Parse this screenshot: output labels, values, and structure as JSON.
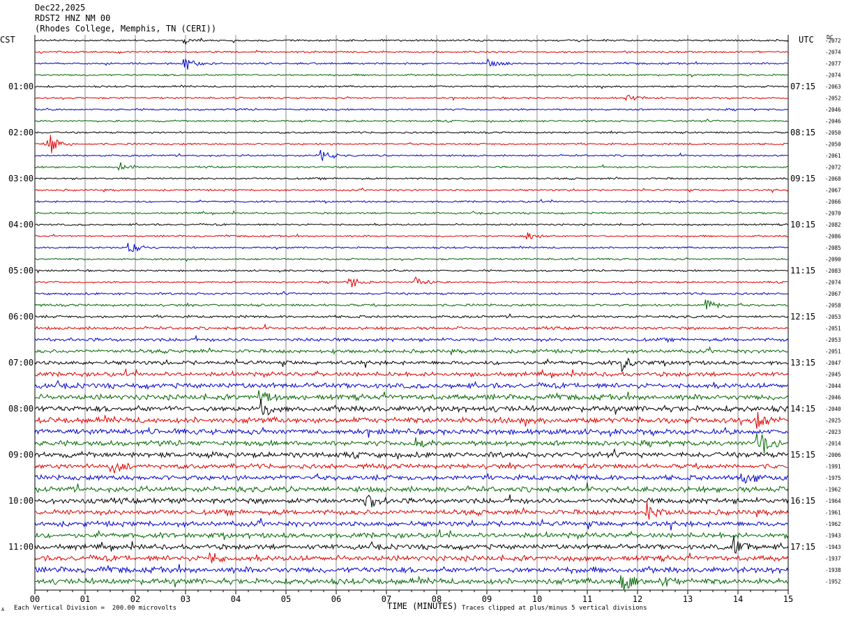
{
  "header": {
    "date": "Dec22,2025",
    "station": "RDST2 HNZ NM 00",
    "location": "(Rhodes College, Memphis, TN (CERI))"
  },
  "left_zone_label": "CST",
  "right_zone_label": "UTC",
  "dc_label": "DC",
  "footer": {
    "scale_note": "Each Vertical Division =  200.00 microvolts",
    "clip_note": "Traces clipped at plus/minus 5 vertical divisions",
    "corner_mark": "A"
  },
  "chart_data": {
    "type": "helicorder",
    "xlabel": "TIME (MINUTES)",
    "xlim": [
      0,
      15
    ],
    "x_ticks": [
      "00",
      "01",
      "02",
      "03",
      "04",
      "05",
      "06",
      "07",
      "08",
      "09",
      "10",
      "11",
      "12",
      "13",
      "14",
      "15"
    ],
    "trace_colors": [
      "#000000",
      "#dd0000",
      "#0000cc",
      "#006600"
    ],
    "left_time_labels": [
      "01:00",
      "02:00",
      "03:00",
      "04:00",
      "05:00",
      "06:00",
      "07:00",
      "08:00",
      "09:00",
      "10:00",
      "11:00"
    ],
    "right_time_labels": [
      "07:15",
      "08:15",
      "09:15",
      "10:15",
      "11:15",
      "12:15",
      "13:15",
      "14:15",
      "15:15",
      "16:15",
      "17:15"
    ],
    "dc_offsets": [
      "-2072",
      "-2074",
      "-2077",
      "-2074",
      "-2063",
      "-2052",
      "-2046",
      "-2046",
      "-2050",
      "-2050",
      "-2061",
      "-2072",
      "-2068",
      "-2067",
      "-2066",
      "-2070",
      "-2082",
      "-2086",
      "-2085",
      "-2090",
      "-2083",
      "-2074",
      "-2067",
      "-2058",
      "-2053",
      "-2051",
      "-2053",
      "-2051",
      "-2047",
      "-2045",
      "-2044",
      "-2046",
      "-2040",
      "-2025",
      "-2023",
      "-2014",
      "-2006",
      "-1991",
      "-1975",
      "-1962",
      "-1964",
      "-1961",
      "-1962",
      "-1943",
      "-1943",
      "-1937",
      "-1938",
      "-1952"
    ],
    "noise_levels": [
      1,
      1,
      1,
      1,
      1,
      1,
      1,
      1,
      1,
      1,
      1,
      1,
      1,
      1,
      1,
      1,
      1,
      1,
      1,
      1,
      1,
      1,
      1.2,
      1.3,
      1.4,
      1.6,
      1.8,
      2,
      2.2,
      2.4,
      2.8,
      3,
      3.2,
      3.2,
      3,
      2.8,
      3,
      2.6,
      2.8,
      3,
      3,
      2.8,
      2.8,
      2.8,
      2.8,
      3,
      3.2,
      3.2
    ],
    "events": [
      {
        "trace": 0,
        "minute": 2.95,
        "amp": 5
      },
      {
        "trace": 2,
        "minute": 3.0,
        "amp": 8
      },
      {
        "trace": 2,
        "minute": 9.05,
        "amp": 6
      },
      {
        "trace": 5,
        "minute": 11.8,
        "amp": 4
      },
      {
        "trace": 9,
        "minute": 0.3,
        "amp": 14
      },
      {
        "trace": 10,
        "minute": 5.7,
        "amp": 10
      },
      {
        "trace": 11,
        "minute": 1.7,
        "amp": 6
      },
      {
        "trace": 18,
        "minute": 1.9,
        "amp": 8
      },
      {
        "trace": 17,
        "minute": 9.8,
        "amp": 6
      },
      {
        "trace": 21,
        "minute": 6.3,
        "amp": 9
      },
      {
        "trace": 21,
        "minute": 7.6,
        "amp": 7
      },
      {
        "trace": 23,
        "minute": 13.4,
        "amp": 7
      },
      {
        "trace": 28,
        "minute": 11.7,
        "amp": 12
      },
      {
        "trace": 31,
        "minute": 4.5,
        "amp": 11
      },
      {
        "trace": 32,
        "minute": 4.5,
        "amp": 10
      },
      {
        "trace": 33,
        "minute": 14.4,
        "amp": 10
      },
      {
        "trace": 35,
        "minute": 14.4,
        "amp": 22
      },
      {
        "trace": 35,
        "minute": 7.6,
        "amp": 9
      },
      {
        "trace": 37,
        "minute": 1.5,
        "amp": 11
      },
      {
        "trace": 38,
        "minute": 14.1,
        "amp": 10
      },
      {
        "trace": 40,
        "minute": 6.6,
        "amp": 12
      },
      {
        "trace": 41,
        "minute": 12.2,
        "amp": 11
      },
      {
        "trace": 44,
        "minute": 13.9,
        "amp": 12
      },
      {
        "trace": 45,
        "minute": 3.5,
        "amp": 8
      },
      {
        "trace": 47,
        "minute": 11.7,
        "amp": 13
      },
      {
        "trace": 47,
        "minute": 12.5,
        "amp": 9
      }
    ]
  }
}
